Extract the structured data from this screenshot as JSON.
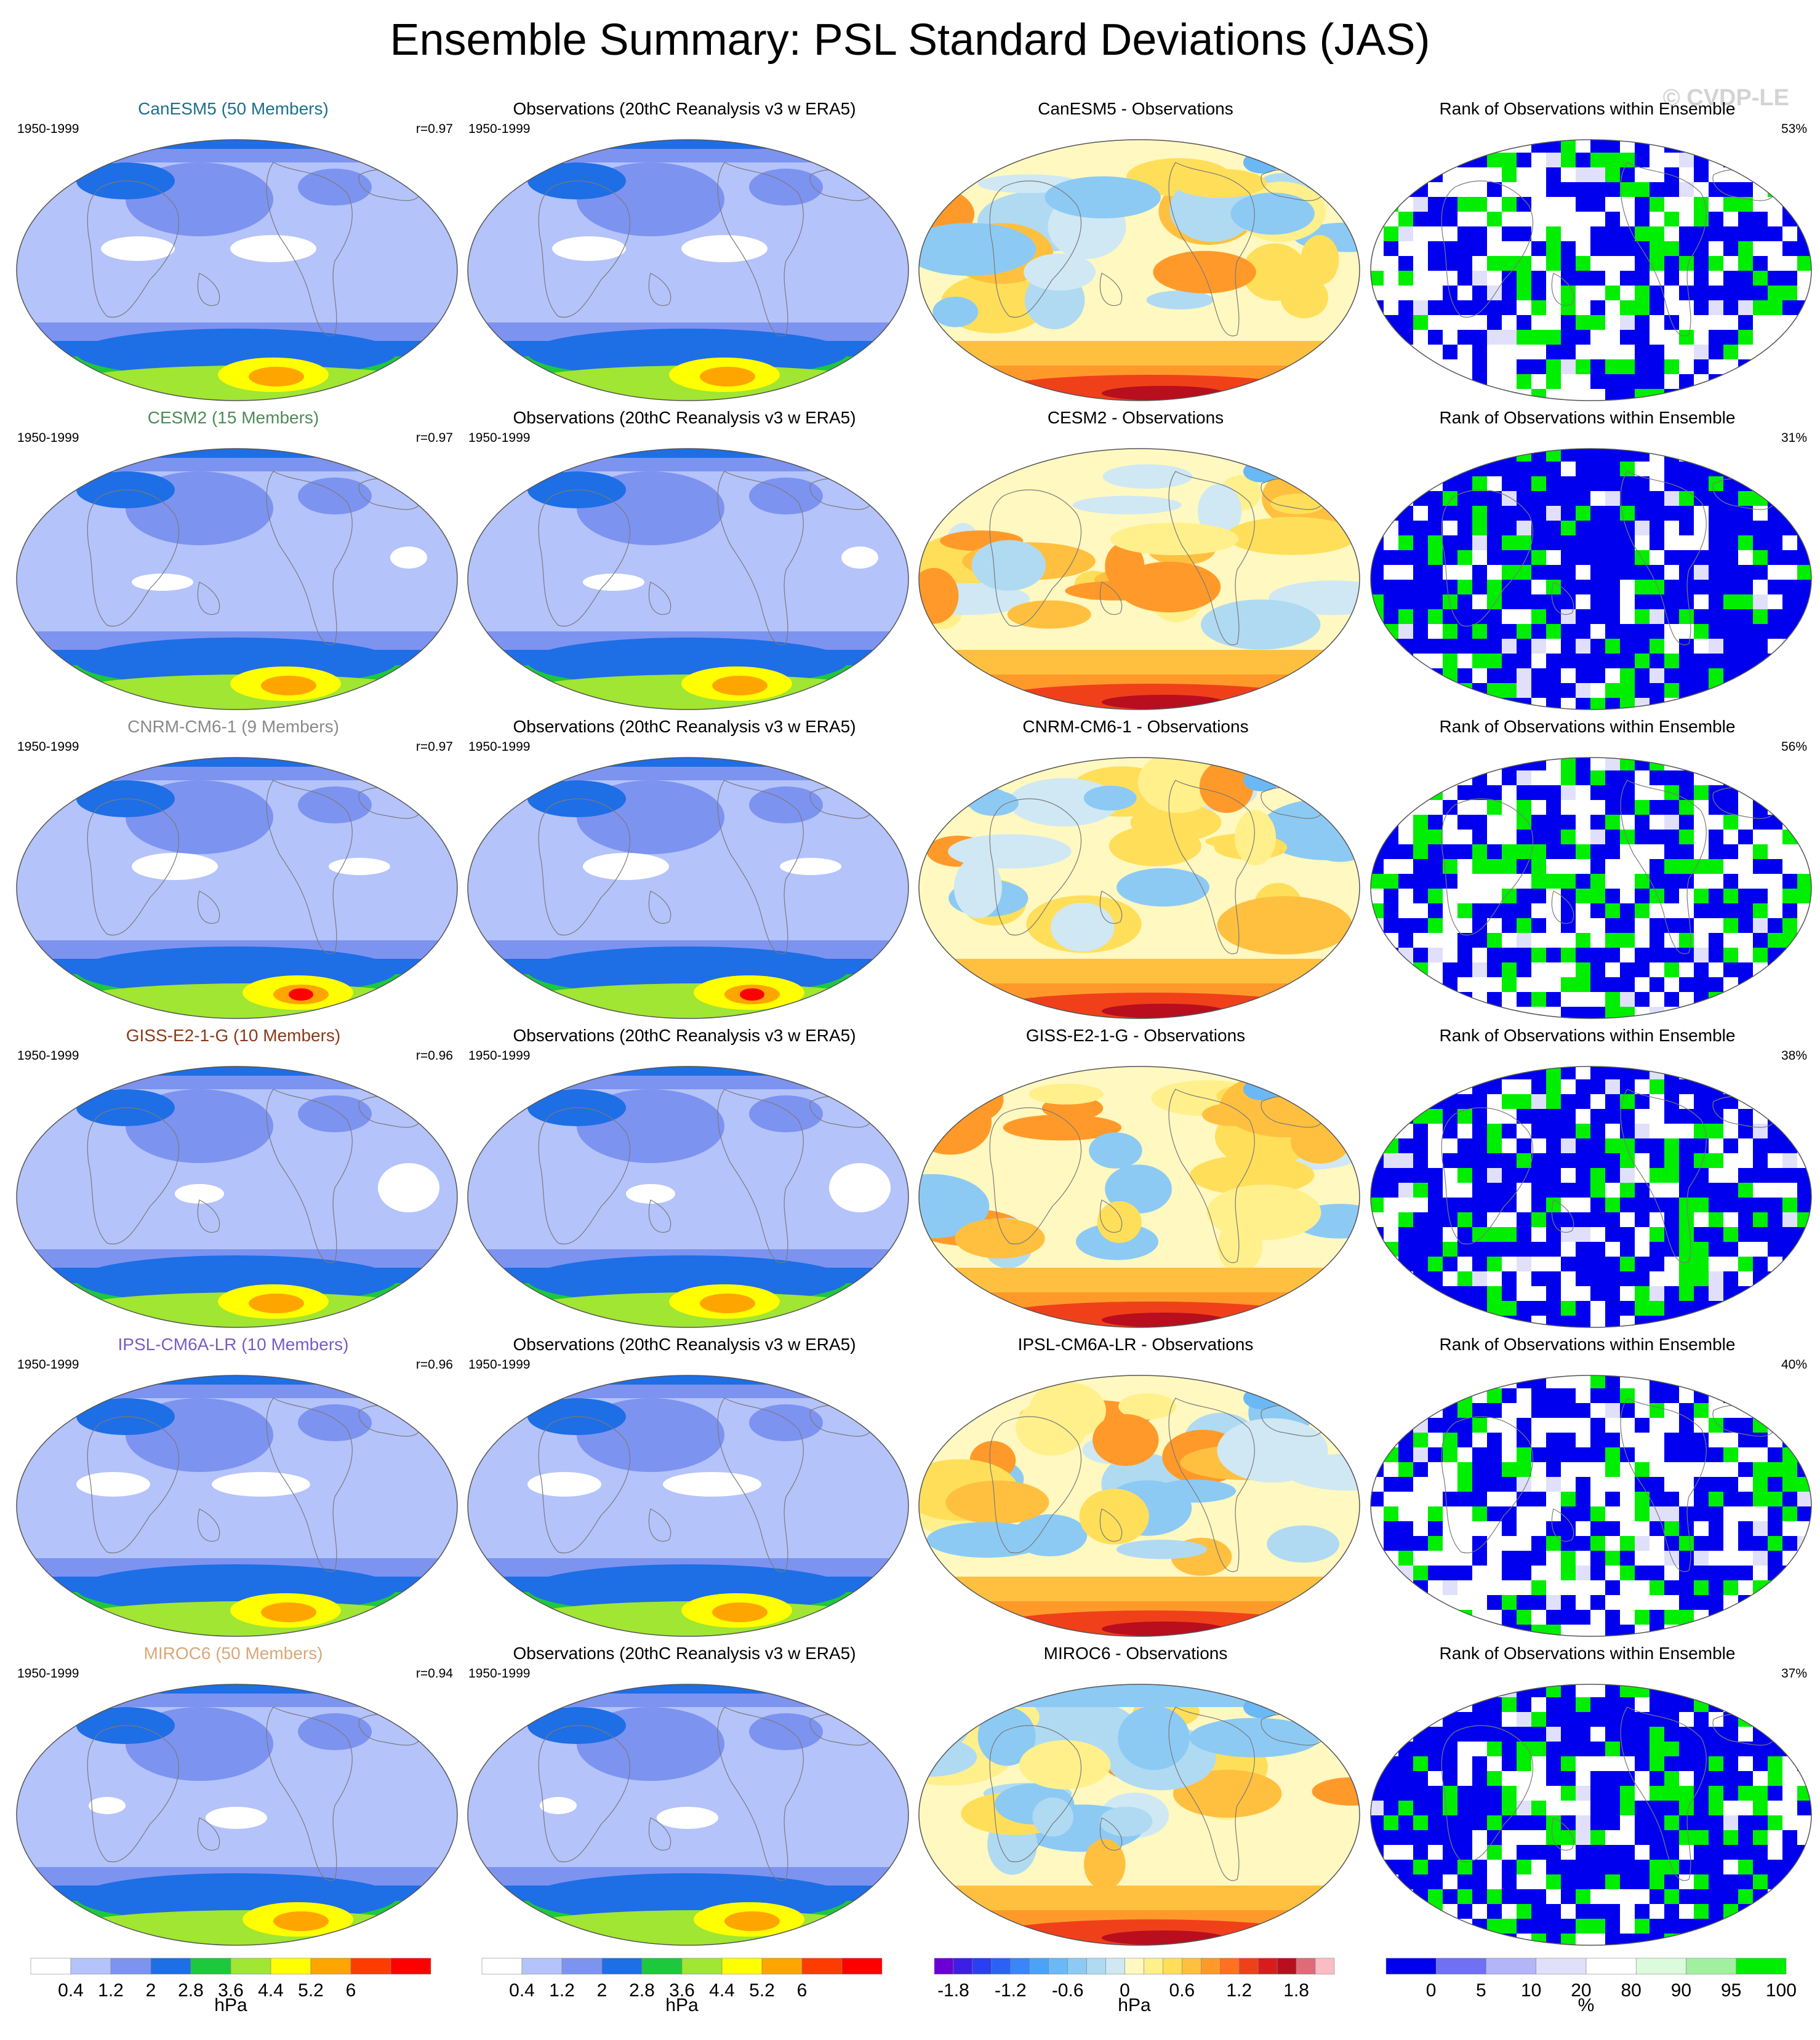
{
  "figure": {
    "title": "Ensemble Summary: PSL Standard Deviations (JAS)",
    "watermark": "© CVDP-LE"
  },
  "rows": [
    {
      "model": {
        "title": "CanESM5 (50 Members)",
        "period": "1950-1999",
        "corr": "r=0.97",
        "title_color": "#1f6f8b"
      },
      "obs": {
        "title": "Observations (20thC Reanalysis v3 w ERA5)",
        "period": "1950-1999"
      },
      "diff": {
        "title": "CanESM5 - Observations"
      },
      "rank": {
        "title": "Rank of Observations within Ensemble",
        "pct": "53%"
      }
    },
    {
      "model": {
        "title": "CESM2 (15 Members)",
        "period": "1950-1999",
        "corr": "r=0.97",
        "title_color": "#4e8b57"
      },
      "obs": {
        "title": "Observations (20thC Reanalysis v3 w ERA5)",
        "period": "1950-1999"
      },
      "diff": {
        "title": "CESM2 - Observations"
      },
      "rank": {
        "title": "Rank of Observations within Ensemble",
        "pct": "31%"
      }
    },
    {
      "model": {
        "title": "CNRM-CM6-1 (9 Members)",
        "period": "1950-1999",
        "corr": "r=0.97",
        "title_color": "#8a8a8a"
      },
      "obs": {
        "title": "Observations (20thC Reanalysis v3 w ERA5)",
        "period": "1950-1999"
      },
      "diff": {
        "title": "CNRM-CM6-1 - Observations"
      },
      "rank": {
        "title": "Rank of Observations within Ensemble",
        "pct": "56%"
      }
    },
    {
      "model": {
        "title": "GISS-E2-1-G (10 Members)",
        "period": "1950-1999",
        "corr": "r=0.96",
        "title_color": "#8b3a1a"
      },
      "obs": {
        "title": "Observations (20thC Reanalysis v3 w ERA5)",
        "period": "1950-1999"
      },
      "diff": {
        "title": "GISS-E2-1-G - Observations"
      },
      "rank": {
        "title": "Rank of Observations within Ensemble",
        "pct": "38%"
      }
    },
    {
      "model": {
        "title": "IPSL-CM6A-LR (10 Members)",
        "period": "1950-1999",
        "corr": "r=0.96",
        "title_color": "#7a5cc4"
      },
      "obs": {
        "title": "Observations (20thC Reanalysis v3 w ERA5)",
        "period": "1950-1999"
      },
      "diff": {
        "title": "IPSL-CM6A-LR - Observations"
      },
      "rank": {
        "title": "Rank of Observations within Ensemble",
        "pct": "40%"
      }
    },
    {
      "model": {
        "title": "MIROC6 (50 Members)",
        "period": "1950-1999",
        "corr": "r=0.94",
        "title_color": "#d8a878"
      },
      "obs": {
        "title": "Observations (20thC Reanalysis v3 w ERA5)",
        "period": "1950-1999"
      },
      "diff": {
        "title": "MIROC6 - Observations"
      },
      "rank": {
        "title": "Rank of Observations within Ensemble",
        "pct": "37%"
      }
    }
  ],
  "chart_data": [
    {
      "type": "heatmap",
      "name": "PSL standard deviation colorbar",
      "units": "hPa",
      "levels": [
        0.4,
        1.2,
        2,
        2.8,
        3.6,
        4.4,
        5.2,
        6
      ],
      "tick_labels": [
        "0.4",
        "1.2",
        "2",
        "2.8",
        "3.6",
        "4.4",
        "5.2",
        "6"
      ],
      "colors": [
        "#ffffff",
        "#b4c3fa",
        "#7d93f0",
        "#1e6ee6",
        "#1ec83c",
        "#a0e632",
        "#ffff00",
        "#ffa500",
        "#ff3c00",
        "#ff0000"
      ]
    },
    {
      "type": "heatmap",
      "name": "Model minus observations colorbar",
      "units": "hPa",
      "levels": [
        -2.0,
        -1.8,
        -1.6,
        -1.4,
        -1.2,
        -1.0,
        -0.8,
        -0.6,
        -0.4,
        -0.2,
        0,
        0.2,
        0.4,
        0.6,
        0.8,
        1.0,
        1.2,
        1.4,
        1.6,
        1.8,
        2.0
      ],
      "tick_labels": [
        "-1.8",
        "-1.2",
        "-0.6",
        "0",
        "0.6",
        "1.2",
        "1.8"
      ],
      "tick_values": [
        -1.8,
        -1.2,
        -0.6,
        0,
        0.6,
        1.2,
        1.8
      ],
      "colors": [
        "#6a00d6",
        "#3c1ee6",
        "#2a3ff2",
        "#2b62f5",
        "#3a85f7",
        "#4aa3f8",
        "#6ab8f6",
        "#8ccaf4",
        "#b0daf2",
        "#cfe8f4",
        "#fff8c0",
        "#fff08c",
        "#ffdf5a",
        "#ffc040",
        "#ff9a2a",
        "#ff7020",
        "#f0401a",
        "#d81c1c",
        "#b80e1e",
        "#e06a78",
        "#fbbcc4"
      ]
    },
    {
      "type": "heatmap",
      "name": "Rank percentile colorbar",
      "units": "%",
      "levels": [
        0,
        5,
        10,
        20,
        80,
        90,
        95,
        100
      ],
      "tick_labels": [
        "0",
        "5",
        "10",
        "20",
        "80",
        "90",
        "95",
        "100"
      ],
      "colors": [
        "#0000ee",
        "#7070f4",
        "#b4b4f8",
        "#e0e0fb",
        "#ffffff",
        "#dcfadc",
        "#a0f0a0",
        "#00ee00"
      ]
    }
  ]
}
